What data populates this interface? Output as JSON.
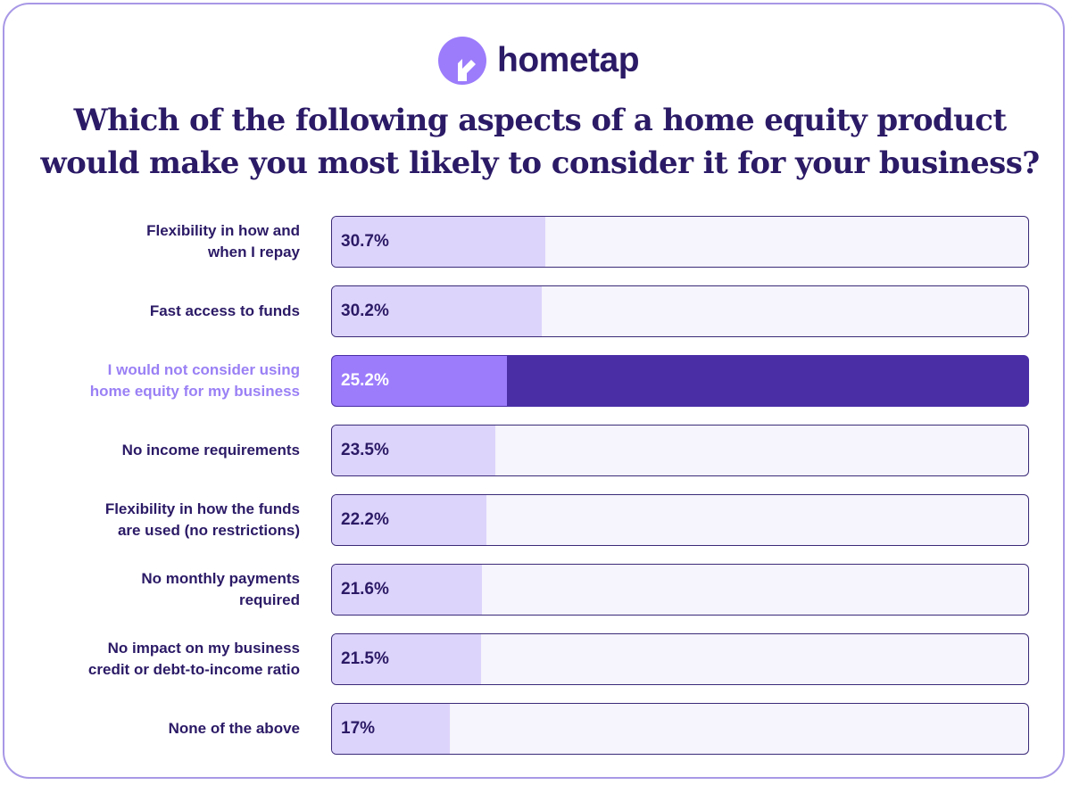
{
  "brand": {
    "name": "hometap",
    "logo_icon": "hometap-house-icon",
    "color": "#2b1a66",
    "mark_color": "#9c7cfb"
  },
  "colors": {
    "accent_dark": "#4a2ea6",
    "accent_light": "#9c7cfb",
    "bar_fill": "#ddd4fb",
    "track": "#f6f4fc",
    "highlight_label": "#9a80f5",
    "border": "#a898e6"
  },
  "chart_data": {
    "type": "bar",
    "orientation": "horizontal",
    "title_lines": [
      "Which of the following aspects of a home equity product",
      "would make you most likely to consider it for your business?"
    ],
    "xlim": [
      0,
      100
    ],
    "unit": "%",
    "categories": [
      [
        "Flexibility in how and",
        "when I repay"
      ],
      [
        "Fast access to funds"
      ],
      [
        "I would not consider using",
        "home equity for my business"
      ],
      [
        "No income requirements"
      ],
      [
        "Flexibility in how the funds",
        "are used (no restrictions)"
      ],
      [
        "No monthly payments",
        "required"
      ],
      [
        "No impact on my business",
        "credit or debt-to-income ratio"
      ],
      [
        "None of the above"
      ]
    ],
    "values": [
      30.7,
      30.2,
      25.2,
      23.5,
      22.2,
      21.6,
      21.5,
      17
    ],
    "value_labels": [
      "30.7%",
      "30.2%",
      "25.2%",
      "23.5%",
      "22.2%",
      "21.6%",
      "21.5%",
      "17%"
    ],
    "highlighted_index": 2
  }
}
